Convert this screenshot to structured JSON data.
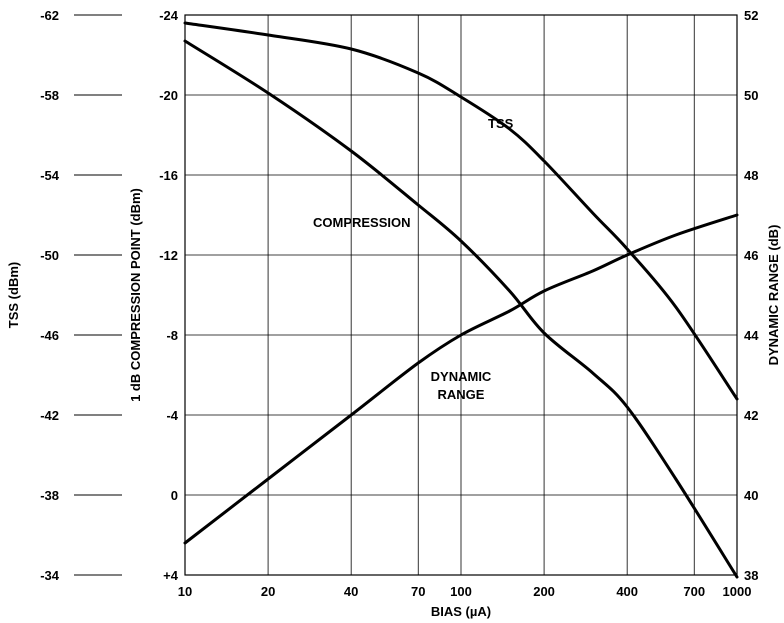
{
  "chart_data": {
    "type": "line",
    "x_axis": {
      "label": "BIAS (µA)",
      "scale": "log",
      "range": [
        10,
        1000
      ],
      "ticks": [
        10,
        20,
        40,
        70,
        100,
        200,
        400,
        700,
        1000
      ],
      "tick_labels": [
        "10",
        "20",
        "40",
        "70",
        "100",
        "200",
        "400",
        "700",
        "1000"
      ]
    },
    "left_axis_inner": {
      "label": "1 dB COMPRESSION POINT (dBm)",
      "range": [
        4,
        -24
      ],
      "ticks": [
        -24,
        -20,
        -16,
        -12,
        -8,
        -4,
        0,
        4
      ],
      "tick_labels": [
        "-24",
        "-20",
        "-16",
        "-12",
        "-8",
        "-4",
        "0",
        "+4"
      ]
    },
    "left_axis_outer": {
      "label": "TSS (dBm)",
      "range": [
        -34,
        -62
      ],
      "ticks": [
        -62,
        -58,
        -54,
        -50,
        -46,
        -42,
        -38,
        -34
      ],
      "tick_labels": [
        "-62",
        "-58",
        "-54",
        "-50",
        "-46",
        "-42",
        "-38",
        "-34"
      ]
    },
    "right_axis": {
      "label": "DYNAMIC RANGE (dB)",
      "range": [
        38,
        52
      ],
      "ticks": [
        52,
        50,
        48,
        46,
        44,
        42,
        40,
        38
      ],
      "tick_labels": [
        "52",
        "50",
        "48",
        "46",
        "44",
        "42",
        "40",
        "38"
      ]
    },
    "grid": true,
    "series": [
      {
        "name": "TSS",
        "axis": "left_axis_outer",
        "x": [
          10,
          20,
          40,
          70,
          100,
          150,
          200,
          300,
          400,
          600,
          1000
        ],
        "y": [
          -61.6,
          -61.0,
          -60.3,
          -59.1,
          -57.9,
          -56.3,
          -54.7,
          -52.1,
          -50.3,
          -47.4,
          -42.8
        ]
      },
      {
        "name": "COMPRESSION",
        "axis": "left_axis_inner",
        "x": [
          10,
          20,
          40,
          70,
          100,
          150,
          200,
          300,
          400,
          600,
          1000
        ],
        "y": [
          -22.7,
          -20.1,
          -17.2,
          -14.5,
          -12.7,
          -10.2,
          -8.1,
          -6.1,
          -4.4,
          -0.8,
          4.1
        ]
      },
      {
        "name": "DYNAMIC RANGE",
        "axis": "right_axis",
        "x": [
          10,
          20,
          40,
          70,
          100,
          150,
          200,
          300,
          400,
          600,
          1000
        ],
        "y": [
          38.8,
          40.4,
          42.0,
          43.3,
          44.0,
          44.6,
          45.1,
          45.6,
          46.0,
          46.5,
          47.0
        ]
      }
    ],
    "annotations": [
      {
        "text": "TSS",
        "series": "TSS"
      },
      {
        "text": "COMPRESSION",
        "series": "COMPRESSION"
      },
      {
        "text": "DYNAMIC",
        "series": "DYNAMIC RANGE"
      },
      {
        "text": "RANGE",
        "series": "DYNAMIC RANGE"
      }
    ]
  }
}
